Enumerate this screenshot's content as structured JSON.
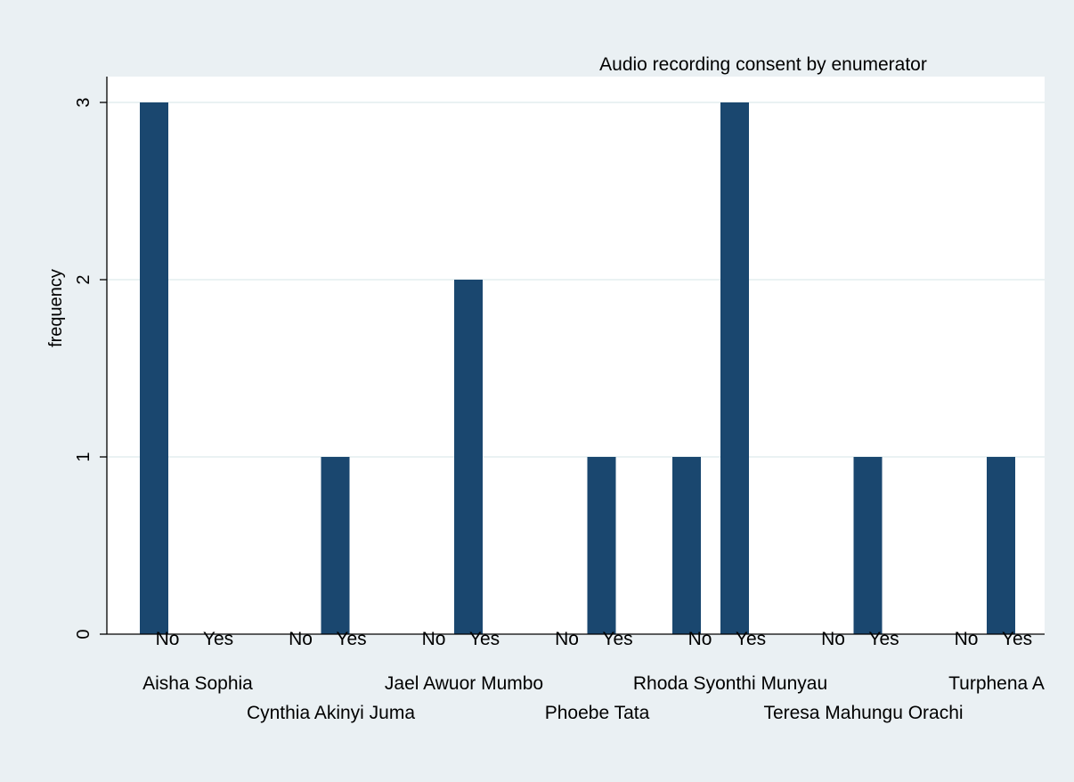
{
  "chart_data": {
    "type": "bar",
    "title": "Audio recording consent by enumerator",
    "ylabel": "frequency",
    "xlabel": "",
    "ylim": [
      0,
      3
    ],
    "yticks": [
      0,
      1,
      2,
      3
    ],
    "grid": true,
    "bar_color": "#1a476f",
    "groups": [
      {
        "name": "Aisha Sophia",
        "categories": [
          "No",
          "Yes"
        ],
        "values": [
          3,
          0
        ]
      },
      {
        "name": "Cynthia Akinyi Juma",
        "categories": [
          "No",
          "Yes"
        ],
        "values": [
          0,
          1
        ]
      },
      {
        "name": "Jael Awuor Mumbo",
        "categories": [
          "No",
          "Yes"
        ],
        "values": [
          0,
          2
        ]
      },
      {
        "name": "Phoebe Tata",
        "categories": [
          "No",
          "Yes"
        ],
        "values": [
          0,
          1
        ]
      },
      {
        "name": "Rhoda Syonthi Munyau",
        "categories": [
          "No",
          "Yes"
        ],
        "values": [
          1,
          3
        ]
      },
      {
        "name": "Teresa Mahungu Orachi",
        "categories": [
          "No",
          "Yes"
        ],
        "values": [
          0,
          1
        ]
      },
      {
        "name": "Turphena A",
        "categories": [
          "No",
          "Yes"
        ],
        "values": [
          0,
          1
        ]
      }
    ]
  }
}
